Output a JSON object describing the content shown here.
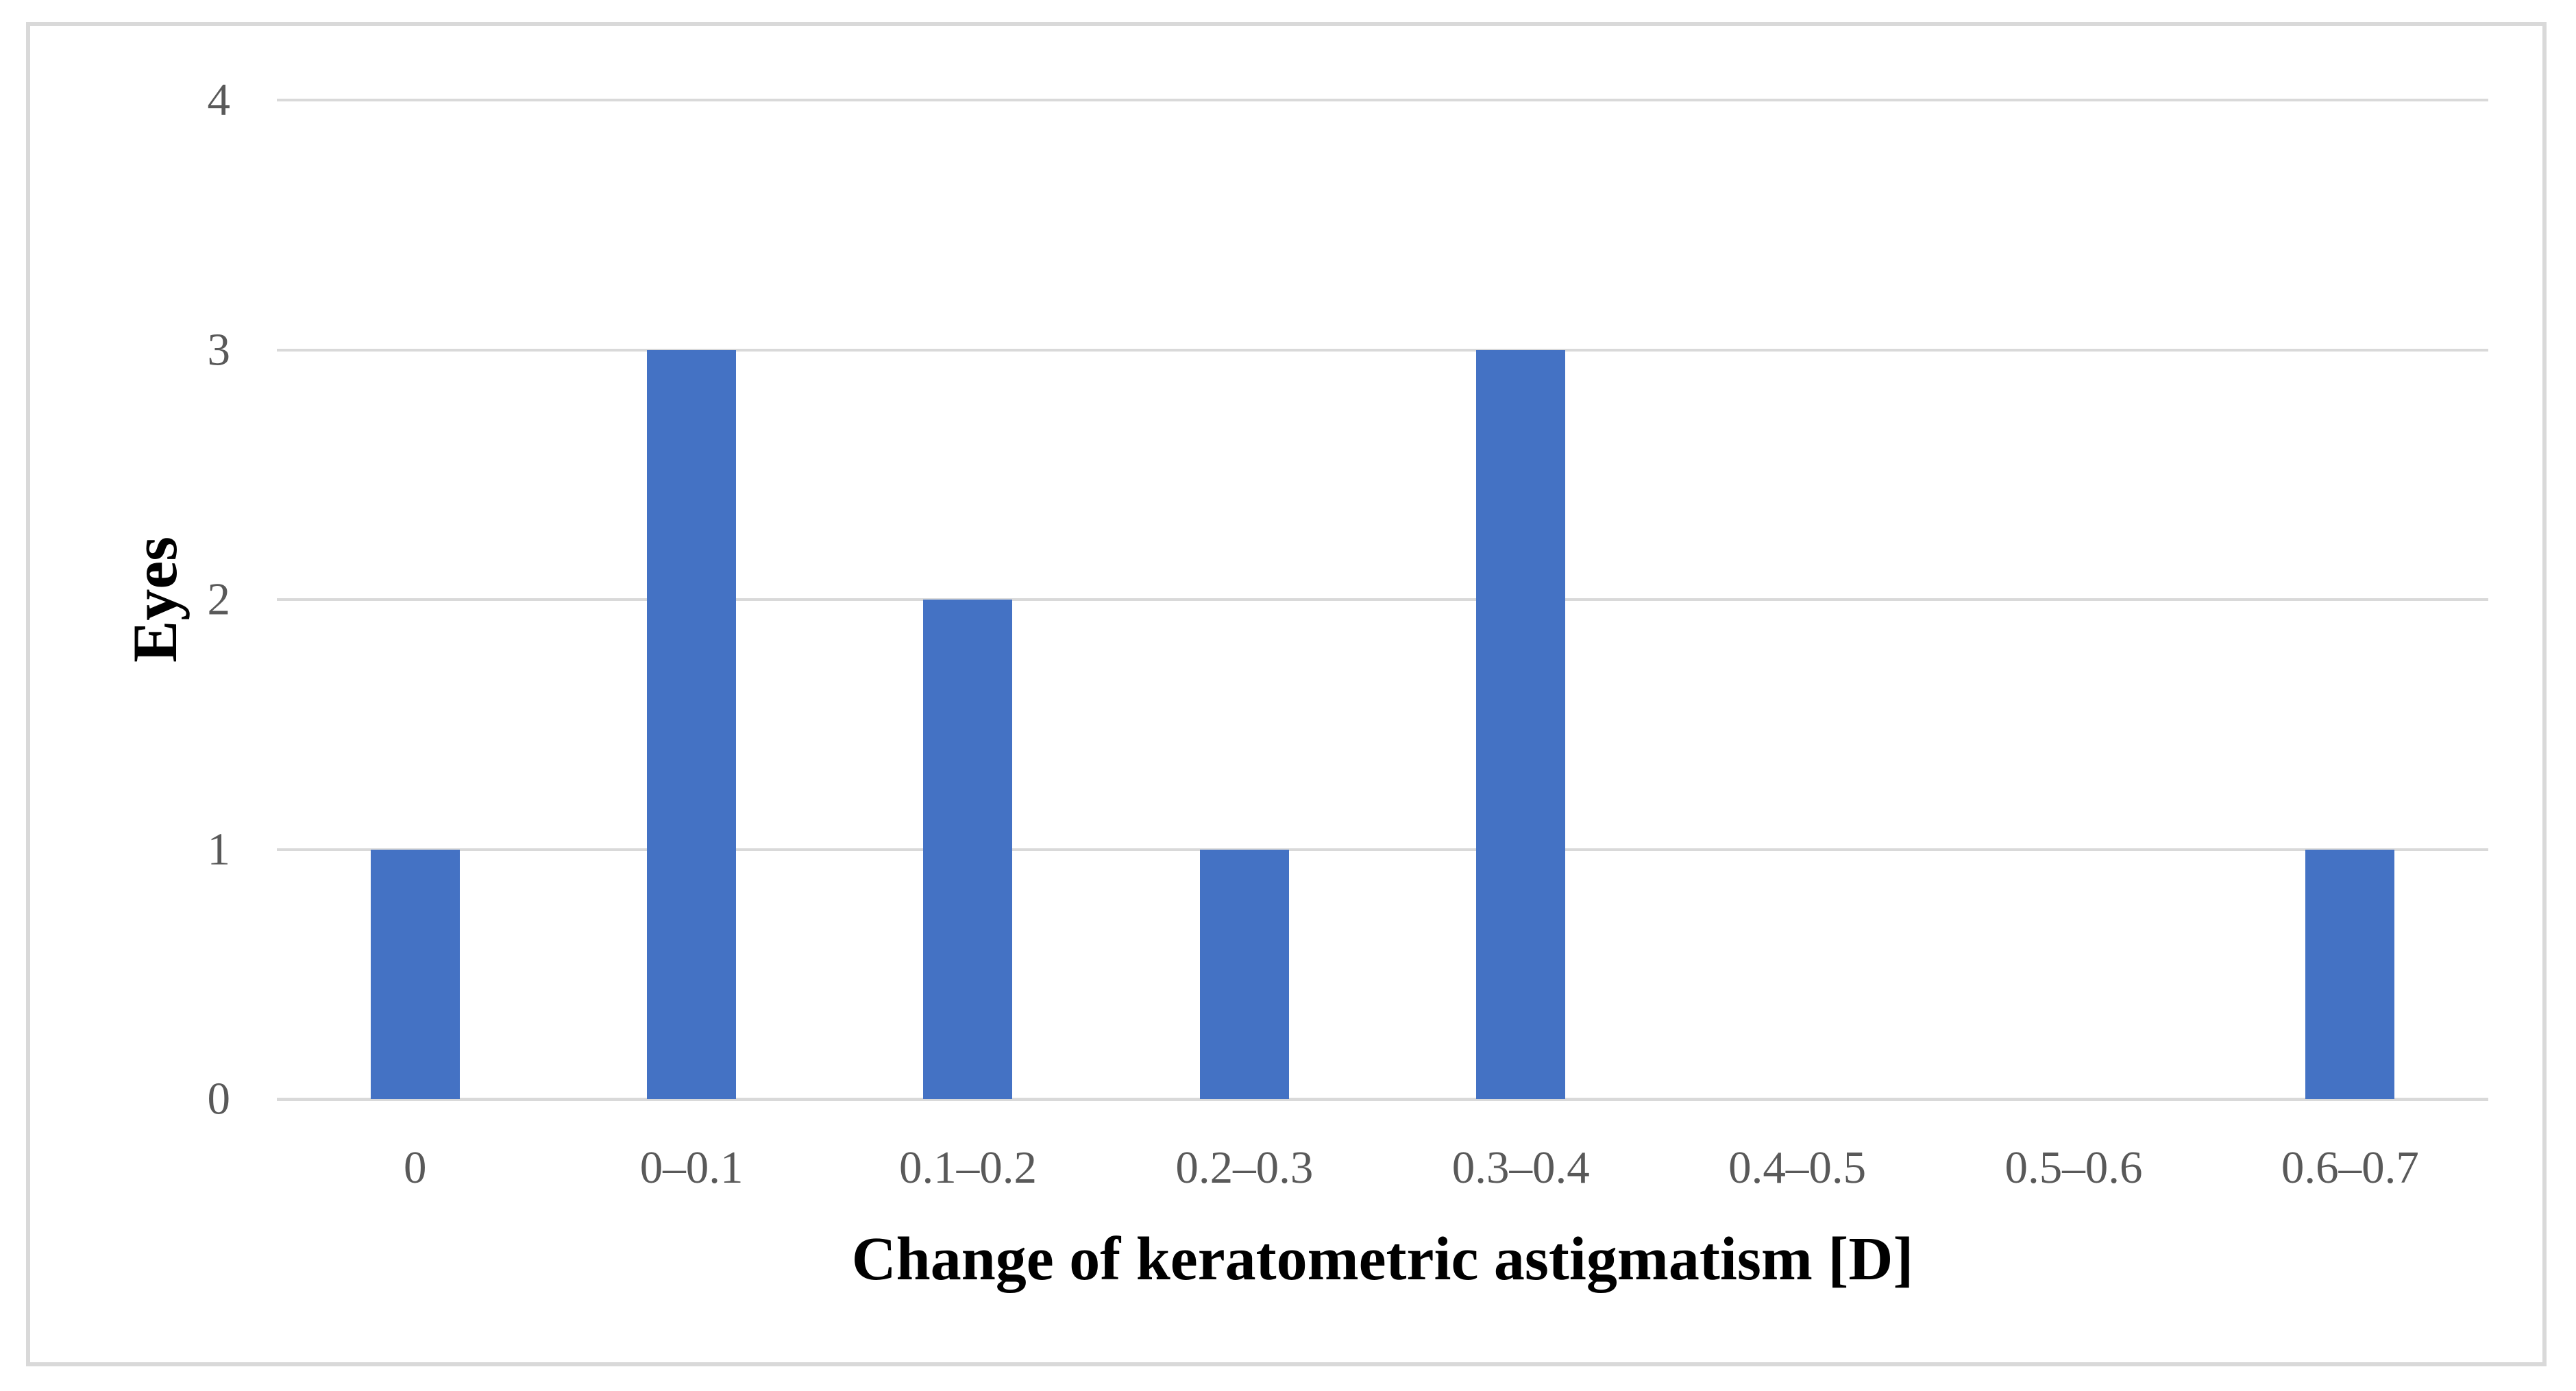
{
  "figure": {
    "background": "#ffffff",
    "border_color": "#d9d9d9"
  },
  "chart_data": {
    "type": "bar",
    "categories": [
      "0",
      "0–0.1",
      "0.1–0.2",
      "0.2–0.3",
      "0.3–0.4",
      "0.4–0.5",
      "0.5–0.6",
      "0.6–0.7"
    ],
    "values": [
      1,
      3,
      2,
      1,
      3,
      0,
      0,
      1
    ],
    "title": "",
    "xlabel": "Change of keratometric astigmatism [D]",
    "ylabel": "Eyes",
    "ylim": [
      0,
      4
    ],
    "yticks": [
      0,
      1,
      2,
      3,
      4
    ],
    "grid": true,
    "legend": false,
    "bar_color": "#4472c4",
    "gridline_color": "#d9d9d9",
    "axis_line_color": "#d9d9d9",
    "tick_label_color": "#595959"
  }
}
